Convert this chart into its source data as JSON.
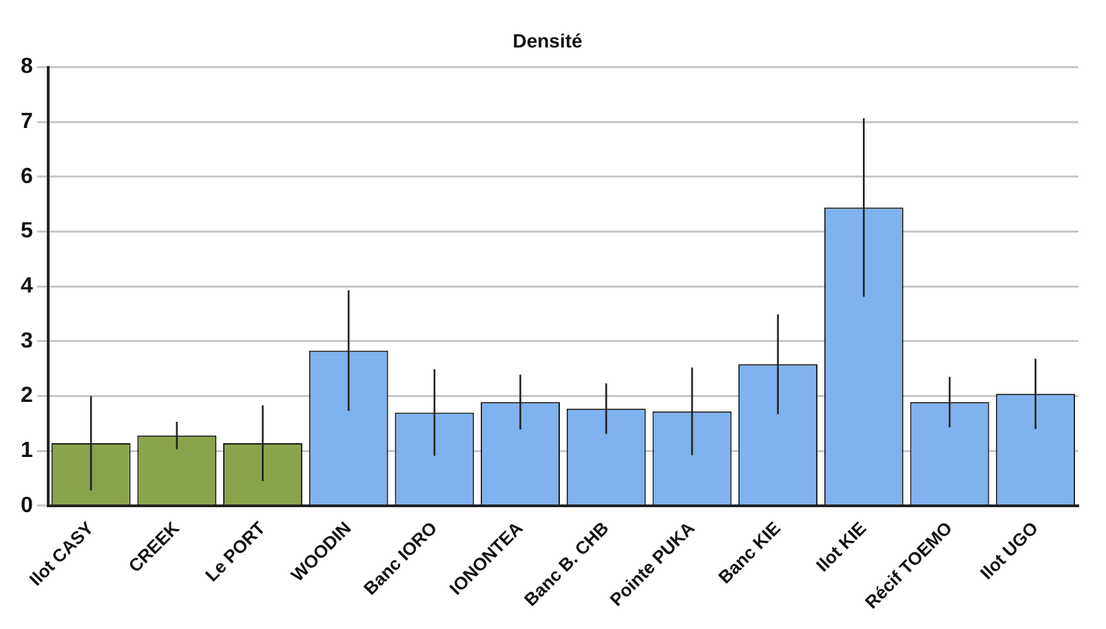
{
  "chart_data": {
    "type": "bar",
    "title": "Densité",
    "categories": [
      "Ilot CASY",
      "CREEK",
      "Le PORT",
      "WOODIN",
      "Banc IORO",
      "IONONTEA",
      "Banc B. CHB",
      "Pointe PUKA",
      "Banc KIE",
      "Ilot KIE",
      "Récif TOEMO",
      "Ilot UGO"
    ],
    "values": [
      1.14,
      1.28,
      1.14,
      2.83,
      1.7,
      1.89,
      1.77,
      1.72,
      2.58,
      5.44,
      1.89,
      2.04
    ],
    "errors": [
      0.86,
      0.25,
      0.69,
      1.1,
      0.79,
      0.5,
      0.46,
      0.8,
      0.91,
      1.63,
      0.46,
      0.64
    ],
    "colors": [
      "#8aa44c",
      "#8aa44c",
      "#8aa44c",
      "#7fb2ee",
      "#7fb2ee",
      "#7fb2ee",
      "#7fb2ee",
      "#7fb2ee",
      "#7fb2ee",
      "#7fb2ee",
      "#7fb2ee",
      "#7fb2ee"
    ],
    "ylim": [
      0,
      8
    ],
    "yticks": [
      0,
      1,
      2,
      3,
      4,
      5,
      6,
      7,
      8
    ],
    "grid": "y",
    "legend": false
  }
}
